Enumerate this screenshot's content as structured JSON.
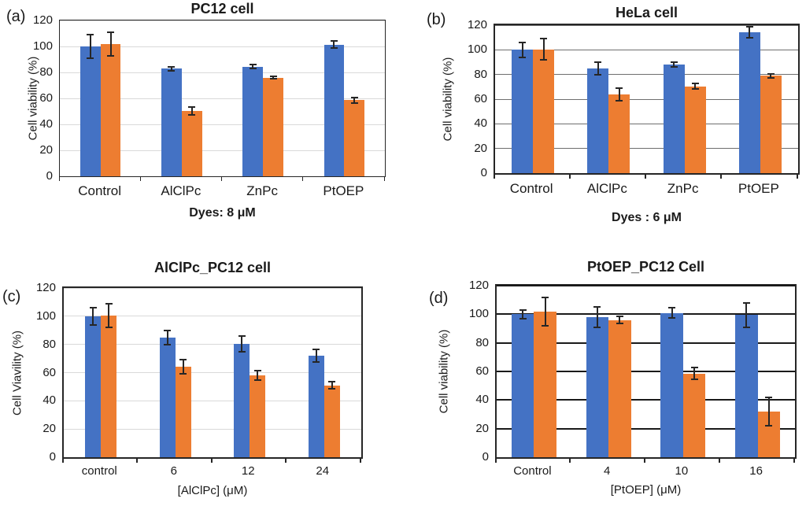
{
  "colors": {
    "series_blue": "#4472C4",
    "series_orange": "#ED7D31",
    "error_bar": "#262626",
    "background": "#ffffff"
  },
  "chart_data": [
    {
      "type": "bar",
      "panel": "(a)",
      "title": "PC12 cell",
      "categories": [
        "Control",
        "AlClPc",
        "ZnPc",
        "PtOEP"
      ],
      "series": [
        {
          "name": "blue",
          "color": "#4472C4",
          "values": [
            100,
            83,
            84.5,
            101.5
          ],
          "errors": [
            9,
            1.5,
            1.5,
            3
          ]
        },
        {
          "name": "orange",
          "color": "#ED7D31",
          "values": [
            102,
            50.5,
            76,
            58.5
          ],
          "errors": [
            9,
            3,
            1,
            2
          ]
        }
      ],
      "xlabel": "Dyes: 8 μM",
      "ylabel": "Cell viability (%)",
      "ylim": [
        0,
        120
      ],
      "yticks": [
        0,
        20,
        40,
        60,
        80,
        100,
        120
      ],
      "grid": true,
      "gridline_color": "#d9d9d9",
      "gridline_width": 1,
      "bar_width_frac": 0.25,
      "legend": "none"
    },
    {
      "type": "bar",
      "panel": "(b)",
      "title": "HeLa cell",
      "categories": [
        "Control",
        "AlClPc",
        "ZnPc",
        "PtOEP"
      ],
      "series": [
        {
          "name": "blue",
          "color": "#4472C4",
          "values": [
            100,
            85,
            88,
            114
          ],
          "errors": [
            6,
            5,
            2,
            4.5
          ]
        },
        {
          "name": "orange",
          "color": "#ED7D31",
          "values": [
            100.5,
            64,
            70.5,
            79
          ],
          "errors": [
            8.5,
            5,
            2,
            1.5
          ]
        }
      ],
      "xlabel": "Dyes : 6 μM",
      "ylabel": "Cell viability (%)",
      "ylim": [
        0,
        120
      ],
      "yticks": [
        0,
        20,
        40,
        60,
        80,
        100,
        120
      ],
      "grid": true,
      "gridline_color": "#6e6e6e",
      "gridline_width": 1,
      "bar_width_frac": 0.28,
      "legend": "none"
    },
    {
      "type": "bar",
      "panel": "(c)",
      "title": "AlClPc_PC12 cell",
      "categories": [
        "control",
        "6",
        "12",
        "24"
      ],
      "series": [
        {
          "name": "blue",
          "color": "#4472C4",
          "values": [
            100,
            85,
            80.5,
            72
          ],
          "errors": [
            6,
            5,
            5.5,
            4.5
          ]
        },
        {
          "name": "orange",
          "color": "#ED7D31",
          "values": [
            100.5,
            64,
            58,
            51
          ],
          "errors": [
            8.5,
            5,
            3.5,
            2.5
          ]
        }
      ],
      "xlabel": "[AlClPc] (μM)",
      "ylabel": "Cell Viavility (%)",
      "ylim": [
        0,
        120
      ],
      "yticks": [
        0,
        20,
        40,
        60,
        80,
        100,
        120
      ],
      "grid": true,
      "gridline_color": "#d9d9d9",
      "gridline_width": 1,
      "bar_width_frac": 0.21,
      "legend": "none"
    },
    {
      "type": "bar",
      "panel": "(d)",
      "title": "PtOEP_PC12 Cell",
      "categories": [
        "Control",
        "4",
        "10",
        "16"
      ],
      "series": [
        {
          "name": "blue",
          "color": "#4472C4",
          "values": [
            100,
            98,
            101,
            99.5
          ],
          "errors": [
            3,
            7,
            3.5,
            8.5
          ]
        },
        {
          "name": "orange",
          "color": "#ED7D31",
          "values": [
            102,
            96,
            58.5,
            32
          ],
          "errors": [
            10,
            2.5,
            4,
            10
          ]
        }
      ],
      "xlabel": "[PtOEP] (μM)",
      "ylabel": "Cell viability (%)",
      "ylim": [
        0,
        120
      ],
      "yticks": [
        0,
        20,
        40,
        60,
        80,
        100,
        120
      ],
      "grid": true,
      "gridline_color": "#1a1a1a",
      "gridline_width": 2,
      "bar_width_frac": 0.3,
      "legend": "none"
    }
  ]
}
